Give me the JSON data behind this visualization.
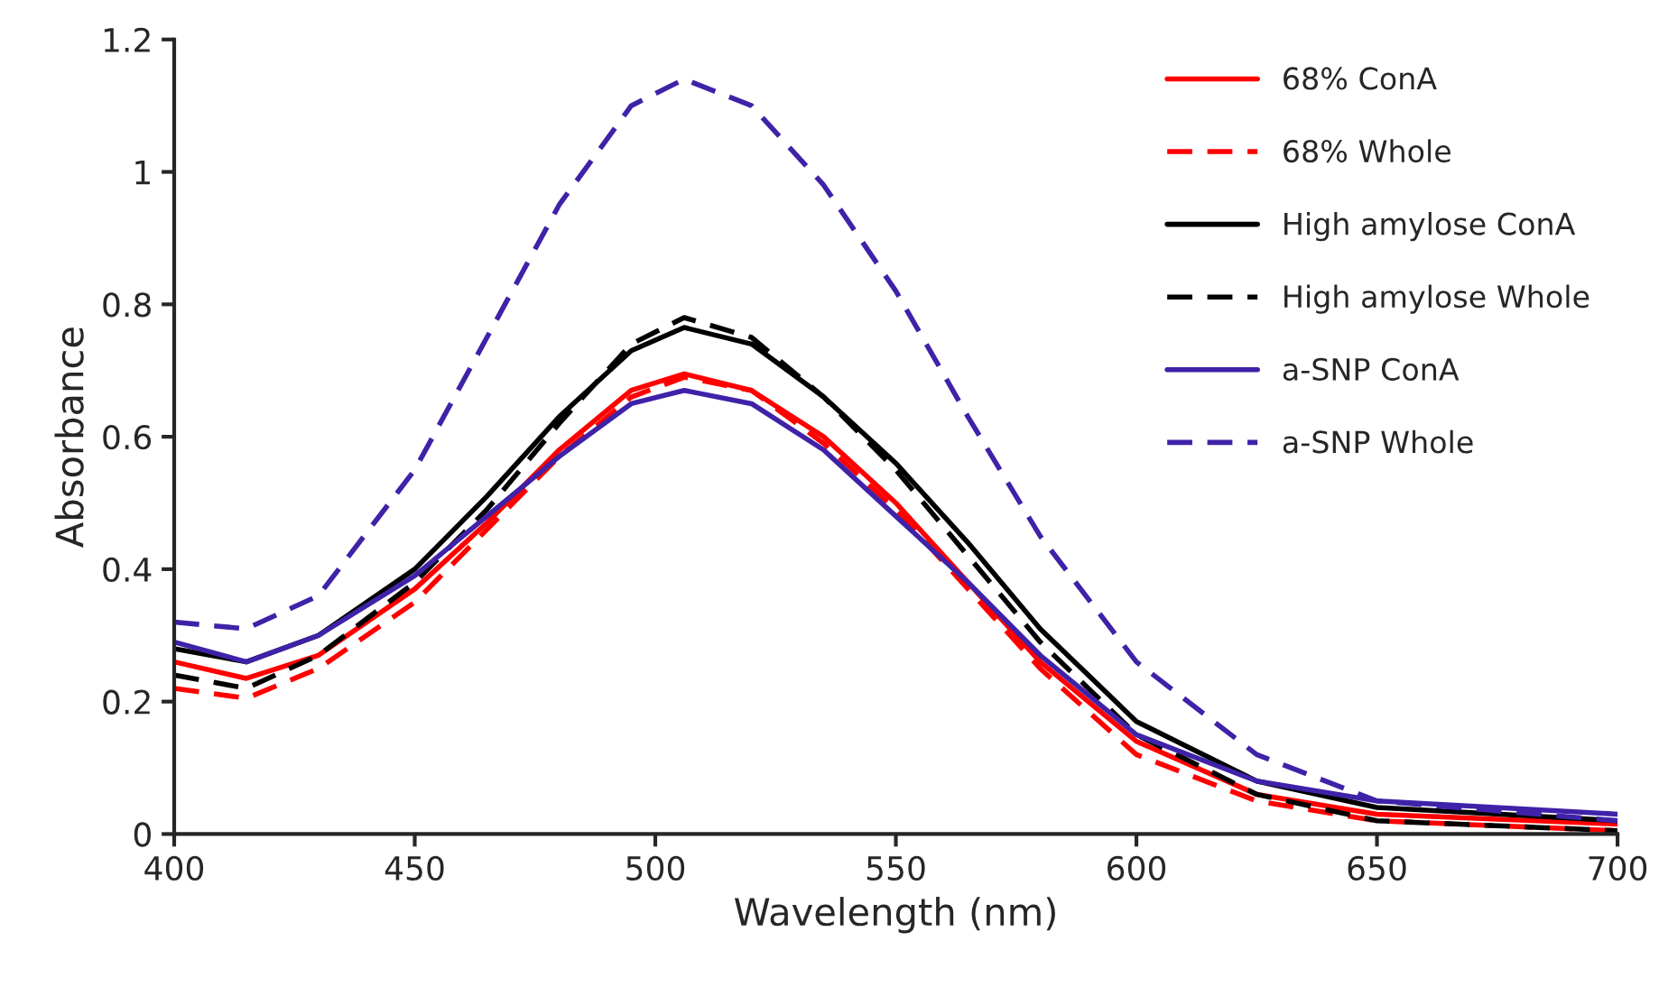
{
  "chart_data": {
    "type": "line",
    "xlabel": "Wavelength (nm)",
    "ylabel": "Absorbance",
    "x": [
      400,
      415,
      430,
      450,
      465,
      480,
      495,
      506,
      520,
      535,
      550,
      565,
      580,
      600,
      625,
      650,
      700
    ],
    "series": [
      {
        "name": "68% ConA",
        "color": "#ff0000",
        "line_style": "solid",
        "values": [
          0.26,
          0.235,
          0.27,
          0.37,
          0.47,
          0.58,
          0.67,
          0.695,
          0.67,
          0.6,
          0.5,
          0.38,
          0.26,
          0.14,
          0.06,
          0.03,
          0.015
        ]
      },
      {
        "name": "68% Whole",
        "color": "#ff0000",
        "line_style": "dashed",
        "values": [
          0.22,
          0.205,
          0.25,
          0.35,
          0.46,
          0.57,
          0.66,
          0.69,
          0.67,
          0.59,
          0.49,
          0.37,
          0.25,
          0.12,
          0.05,
          0.02,
          0.005
        ]
      },
      {
        "name": "High amylose ConA",
        "color": "#000000",
        "line_style": "solid",
        "values": [
          0.28,
          0.26,
          0.3,
          0.4,
          0.51,
          0.63,
          0.73,
          0.765,
          0.74,
          0.66,
          0.56,
          0.44,
          0.31,
          0.17,
          0.08,
          0.04,
          0.02
        ]
      },
      {
        "name": "High amylose Whole",
        "color": "#000000",
        "line_style": "dashed",
        "values": [
          0.24,
          0.22,
          0.27,
          0.38,
          0.49,
          0.62,
          0.74,
          0.78,
          0.75,
          0.66,
          0.55,
          0.42,
          0.29,
          0.15,
          0.06,
          0.02,
          0.005
        ]
      },
      {
        "name": "a-SNP ConA",
        "color": "#3f22a8",
        "line_style": "solid",
        "values": [
          0.29,
          0.26,
          0.3,
          0.39,
          0.48,
          0.57,
          0.65,
          0.67,
          0.65,
          0.58,
          0.48,
          0.38,
          0.27,
          0.15,
          0.08,
          0.05,
          0.03
        ]
      },
      {
        "name": "a-SNP Whole",
        "color": "#3f22a8",
        "line_style": "dashed",
        "values": [
          0.32,
          0.31,
          0.36,
          0.55,
          0.75,
          0.95,
          1.1,
          1.14,
          1.1,
          0.98,
          0.82,
          0.63,
          0.45,
          0.26,
          0.12,
          0.05,
          0.02
        ]
      }
    ],
    "xlim": [
      400,
      700
    ],
    "xticks": [
      400,
      450,
      500,
      550,
      600,
      650,
      700
    ],
    "ylim": [
      0,
      1.2
    ],
    "yticks": [
      0,
      0.2,
      0.4,
      0.6,
      0.8,
      1,
      1.2
    ],
    "grid": false,
    "legend": "top right",
    "marker": "none"
  }
}
